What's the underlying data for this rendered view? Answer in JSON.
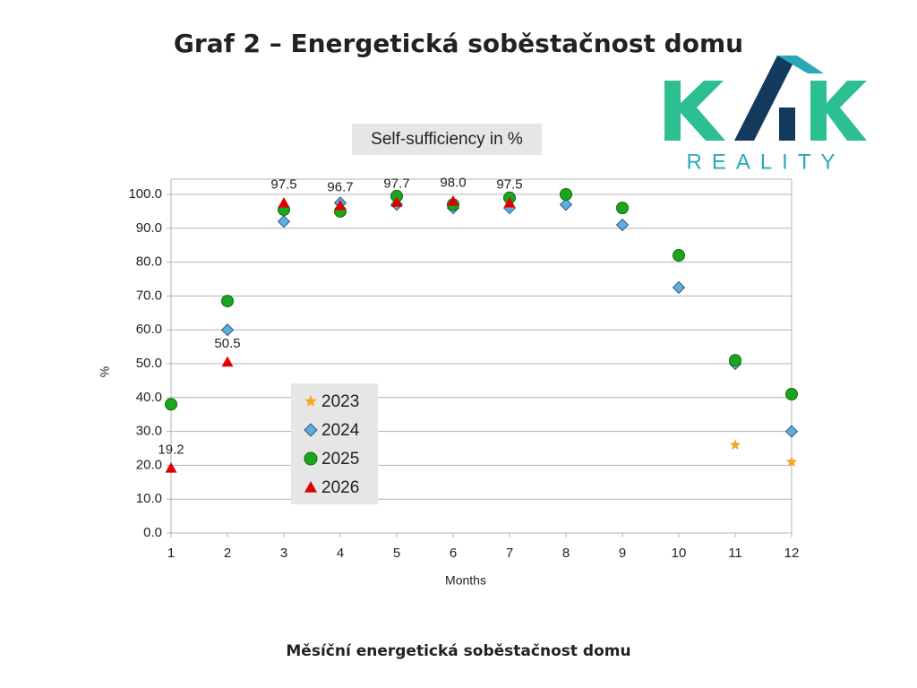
{
  "header": {
    "title": "Graf 2 – Energetická soběstačnost domu"
  },
  "logo": {
    "tagline": "REALITY"
  },
  "chart_data": {
    "type": "scatter",
    "title": "Self-sufficiency in %",
    "x_label": "Months",
    "y_label": "%",
    "x": [
      1,
      2,
      3,
      4,
      5,
      6,
      7,
      8,
      9,
      10,
      11,
      12
    ],
    "xlim": [
      1,
      12
    ],
    "xticks": [
      1,
      2,
      3,
      4,
      5,
      6,
      7,
      8,
      9,
      10,
      11,
      12
    ],
    "ylim": [
      0,
      100
    ],
    "yticks": [
      {
        "value": 0,
        "label": "0.0"
      },
      {
        "value": 10,
        "label": "10.0"
      },
      {
        "value": 20,
        "label": "20.0"
      },
      {
        "value": 30,
        "label": "30.0"
      },
      {
        "value": 40,
        "label": "40.0"
      },
      {
        "value": 50,
        "label": "50.0"
      },
      {
        "value": 60,
        "label": "60.0"
      },
      {
        "value": 70,
        "label": "70.0"
      },
      {
        "value": 80,
        "label": "80.0"
      },
      {
        "value": 90,
        "label": "90.0"
      },
      {
        "value": 100,
        "label": "100.0"
      }
    ],
    "grid": true,
    "series": [
      {
        "name": "2023",
        "color": "#f5a623",
        "marker": "star",
        "values": [
          null,
          null,
          null,
          null,
          null,
          null,
          null,
          null,
          null,
          null,
          26,
          21
        ]
      },
      {
        "name": "2024",
        "color": "#5aaee0",
        "marker": "diamond",
        "values": [
          38,
          60,
          92,
          97.5,
          97,
          96,
          96,
          97,
          91,
          72.5,
          50,
          30
        ]
      },
      {
        "name": "2025",
        "color": "#1ea51e",
        "marker": "circle",
        "values": [
          38,
          68.5,
          95.5,
          95,
          99.5,
          97,
          99,
          100,
          96,
          82,
          51,
          41
        ]
      },
      {
        "name": "2026",
        "color": "#e00000",
        "marker": "triangle",
        "values": [
          19.2,
          50.5,
          97.5,
          96.7,
          97.7,
          98,
          97.5,
          null,
          null,
          null,
          null,
          null
        ],
        "value_labels": [
          "19.2",
          "50.5",
          "97.5",
          "96.7",
          "97.7",
          "98.0",
          "97.5",
          null,
          null,
          null,
          null,
          null
        ]
      }
    ]
  },
  "caption": "Měsíční energetická soběstačnost domu"
}
